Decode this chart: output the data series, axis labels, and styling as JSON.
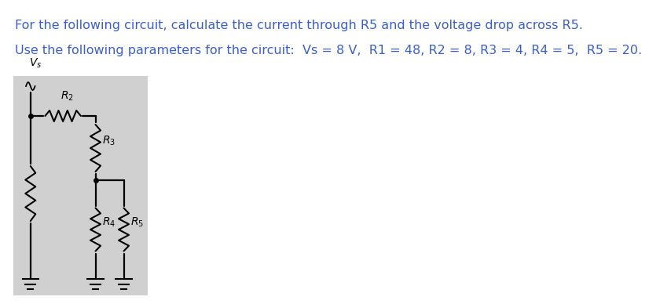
{
  "title_line1": "For the following circuit, calculate the current through R5 and the voltage drop across R5.",
  "title_line2": "Use the following parameters for the circuit:  Vs = 8 V,  R1 = 48, R2 = 8, R3 = 4, R4 = 5,  R5 = 20.",
  "title_color": "#3a5fcd",
  "bg_color": "#ffffff",
  "circuit_bg": "#d0d0d0",
  "title1_fontsize": 11.5,
  "title2_fontsize": 11.5
}
